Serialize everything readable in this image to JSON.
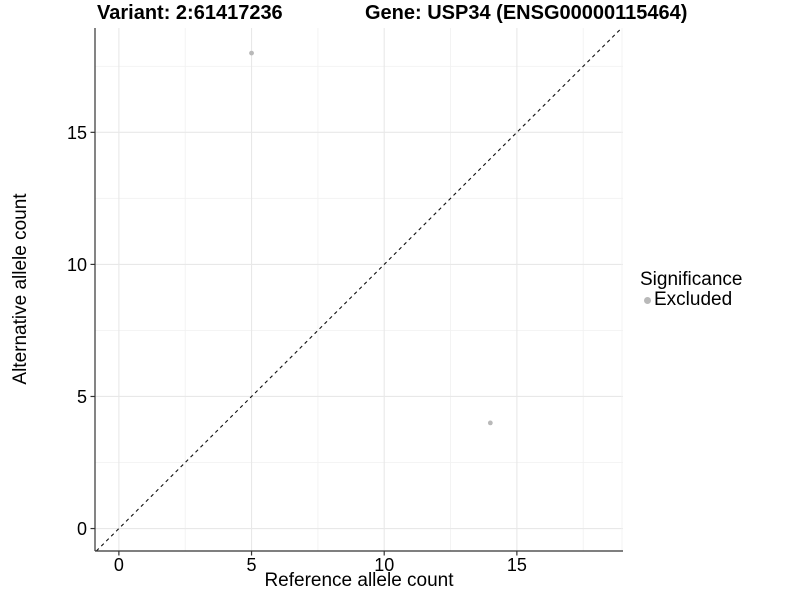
{
  "header": {
    "variant_title": "Variant: 2:61417236",
    "gene_title": "Gene: USP34 (ENSG00000115464)"
  },
  "legend": {
    "title": "Significance",
    "items": [
      {
        "label": "Excluded",
        "color": "#b9b9b9"
      }
    ]
  },
  "chart_data": {
    "type": "scatter",
    "title": "Variant: 2:61417236   Gene: USP34 (ENSG00000115464)",
    "xlabel": "Reference allele count",
    "ylabel": "Alternative allele count",
    "xlim": [
      -0.9,
      19.0
    ],
    "ylim": [
      -0.85,
      18.95
    ],
    "x_ticks": [
      0,
      5,
      10,
      15
    ],
    "y_ticks": [
      0,
      5,
      10,
      15
    ],
    "x_minor_ticks": [
      2.5,
      7.5,
      12.5,
      17.5
    ],
    "y_minor_ticks": [
      2.5,
      7.5,
      12.5,
      17.5
    ],
    "grid": true,
    "legend_position": "right",
    "legend_title": "Significance",
    "series": [
      {
        "name": "Excluded",
        "color": "#b9b9b9",
        "marker": "circle",
        "points": [
          [
            5,
            18
          ],
          [
            14,
            4
          ]
        ]
      }
    ],
    "reference_line": {
      "type": "identity y=x",
      "style": "dashed",
      "color": "#111111"
    },
    "colors": {
      "major_grid": "#e8e8e8",
      "minor_grid": "#f2f2f2",
      "axis": "#333333",
      "tick_text": "#000000",
      "background": "#ffffff"
    }
  }
}
